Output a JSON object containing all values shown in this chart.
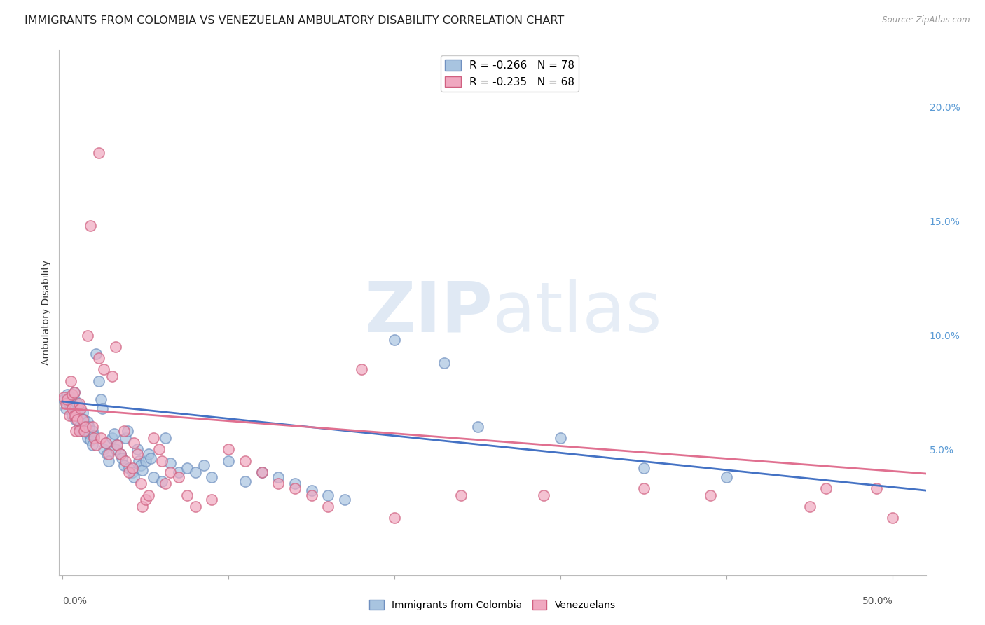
{
  "title": "IMMIGRANTS FROM COLOMBIA VS VENEZUELAN AMBULATORY DISABILITY CORRELATION CHART",
  "source": "Source: ZipAtlas.com",
  "ylabel": "Ambulatory Disability",
  "right_yticks": [
    "5.0%",
    "10.0%",
    "15.0%",
    "20.0%"
  ],
  "right_ytick_vals": [
    0.05,
    0.1,
    0.15,
    0.2
  ],
  "ylim": [
    -0.005,
    0.225
  ],
  "xlim": [
    -0.002,
    0.52
  ],
  "watermark_zip": "ZIP",
  "watermark_atlas": "atlas",
  "colombia_color": "#a8c4e0",
  "venezuela_color": "#f0a8c0",
  "colombia_edge_color": "#7090c0",
  "venezuela_edge_color": "#d06080",
  "colombia_line_color": "#4472c4",
  "venezuela_line_color": "#e07090",
  "colombia_intercept": 0.071,
  "colombia_slope": -0.075,
  "venezuela_intercept": 0.068,
  "venezuela_slope": -0.055,
  "colombia_points": [
    [
      0.001,
      0.072
    ],
    [
      0.002,
      0.068
    ],
    [
      0.003,
      0.074
    ],
    [
      0.004,
      0.07
    ],
    [
      0.005,
      0.073
    ],
    [
      0.006,
      0.065
    ],
    [
      0.006,
      0.069
    ],
    [
      0.007,
      0.068
    ],
    [
      0.007,
      0.075
    ],
    [
      0.008,
      0.063
    ],
    [
      0.008,
      0.071
    ],
    [
      0.009,
      0.07
    ],
    [
      0.009,
      0.066
    ],
    [
      0.01,
      0.06
    ],
    [
      0.01,
      0.067
    ],
    [
      0.011,
      0.058
    ],
    [
      0.011,
      0.064
    ],
    [
      0.012,
      0.066
    ],
    [
      0.012,
      0.06
    ],
    [
      0.013,
      0.063
    ],
    [
      0.014,
      0.058
    ],
    [
      0.015,
      0.055
    ],
    [
      0.015,
      0.062
    ],
    [
      0.016,
      0.06
    ],
    [
      0.016,
      0.057
    ],
    [
      0.017,
      0.054
    ],
    [
      0.018,
      0.058
    ],
    [
      0.018,
      0.052
    ],
    [
      0.019,
      0.056
    ],
    [
      0.02,
      0.092
    ],
    [
      0.022,
      0.08
    ],
    [
      0.023,
      0.072
    ],
    [
      0.024,
      0.068
    ],
    [
      0.025,
      0.05
    ],
    [
      0.026,
      0.053
    ],
    [
      0.027,
      0.048
    ],
    [
      0.028,
      0.045
    ],
    [
      0.03,
      0.055
    ],
    [
      0.031,
      0.057
    ],
    [
      0.032,
      0.05
    ],
    [
      0.033,
      0.052
    ],
    [
      0.035,
      0.048
    ],
    [
      0.036,
      0.046
    ],
    [
      0.037,
      0.043
    ],
    [
      0.038,
      0.055
    ],
    [
      0.039,
      0.058
    ],
    [
      0.04,
      0.042
    ],
    [
      0.042,
      0.04
    ],
    [
      0.043,
      0.038
    ],
    [
      0.045,
      0.05
    ],
    [
      0.046,
      0.045
    ],
    [
      0.047,
      0.043
    ],
    [
      0.048,
      0.041
    ],
    [
      0.05,
      0.045
    ],
    [
      0.052,
      0.048
    ],
    [
      0.053,
      0.046
    ],
    [
      0.055,
      0.038
    ],
    [
      0.06,
      0.036
    ],
    [
      0.062,
      0.055
    ],
    [
      0.065,
      0.044
    ],
    [
      0.07,
      0.04
    ],
    [
      0.075,
      0.042
    ],
    [
      0.08,
      0.04
    ],
    [
      0.085,
      0.043
    ],
    [
      0.09,
      0.038
    ],
    [
      0.1,
      0.045
    ],
    [
      0.11,
      0.036
    ],
    [
      0.12,
      0.04
    ],
    [
      0.13,
      0.038
    ],
    [
      0.14,
      0.035
    ],
    [
      0.15,
      0.032
    ],
    [
      0.16,
      0.03
    ],
    [
      0.17,
      0.028
    ],
    [
      0.2,
      0.098
    ],
    [
      0.23,
      0.088
    ],
    [
      0.25,
      0.06
    ],
    [
      0.3,
      0.055
    ],
    [
      0.35,
      0.042
    ],
    [
      0.4,
      0.038
    ]
  ],
  "venezuela_points": [
    [
      0.001,
      0.073
    ],
    [
      0.002,
      0.07
    ],
    [
      0.003,
      0.072
    ],
    [
      0.004,
      0.065
    ],
    [
      0.005,
      0.08
    ],
    [
      0.006,
      0.068
    ],
    [
      0.006,
      0.074
    ],
    [
      0.007,
      0.075
    ],
    [
      0.007,
      0.065
    ],
    [
      0.008,
      0.065
    ],
    [
      0.008,
      0.058
    ],
    [
      0.009,
      0.063
    ],
    [
      0.01,
      0.07
    ],
    [
      0.01,
      0.058
    ],
    [
      0.011,
      0.068
    ],
    [
      0.012,
      0.063
    ],
    [
      0.013,
      0.058
    ],
    [
      0.014,
      0.06
    ],
    [
      0.015,
      0.1
    ],
    [
      0.017,
      0.148
    ],
    [
      0.018,
      0.06
    ],
    [
      0.019,
      0.055
    ],
    [
      0.02,
      0.052
    ],
    [
      0.022,
      0.09
    ],
    [
      0.022,
      0.18
    ],
    [
      0.023,
      0.055
    ],
    [
      0.025,
      0.085
    ],
    [
      0.026,
      0.053
    ],
    [
      0.028,
      0.048
    ],
    [
      0.03,
      0.082
    ],
    [
      0.032,
      0.095
    ],
    [
      0.033,
      0.052
    ],
    [
      0.035,
      0.048
    ],
    [
      0.037,
      0.058
    ],
    [
      0.038,
      0.045
    ],
    [
      0.04,
      0.04
    ],
    [
      0.042,
      0.042
    ],
    [
      0.043,
      0.053
    ],
    [
      0.045,
      0.048
    ],
    [
      0.047,
      0.035
    ],
    [
      0.048,
      0.025
    ],
    [
      0.05,
      0.028
    ],
    [
      0.052,
      0.03
    ],
    [
      0.055,
      0.055
    ],
    [
      0.058,
      0.05
    ],
    [
      0.06,
      0.045
    ],
    [
      0.062,
      0.035
    ],
    [
      0.065,
      0.04
    ],
    [
      0.07,
      0.038
    ],
    [
      0.075,
      0.03
    ],
    [
      0.08,
      0.025
    ],
    [
      0.09,
      0.028
    ],
    [
      0.1,
      0.05
    ],
    [
      0.11,
      0.045
    ],
    [
      0.12,
      0.04
    ],
    [
      0.13,
      0.035
    ],
    [
      0.14,
      0.033
    ],
    [
      0.15,
      0.03
    ],
    [
      0.16,
      0.025
    ],
    [
      0.18,
      0.085
    ],
    [
      0.2,
      0.02
    ],
    [
      0.24,
      0.03
    ],
    [
      0.29,
      0.03
    ],
    [
      0.35,
      0.033
    ],
    [
      0.39,
      0.03
    ],
    [
      0.45,
      0.025
    ],
    [
      0.46,
      0.033
    ],
    [
      0.49,
      0.033
    ],
    [
      0.5,
      0.02
    ]
  ],
  "background_color": "#ffffff",
  "grid_color": "#d8d8d8",
  "title_fontsize": 11.5,
  "axis_label_fontsize": 10,
  "tick_fontsize": 10,
  "legend_fontsize": 11
}
